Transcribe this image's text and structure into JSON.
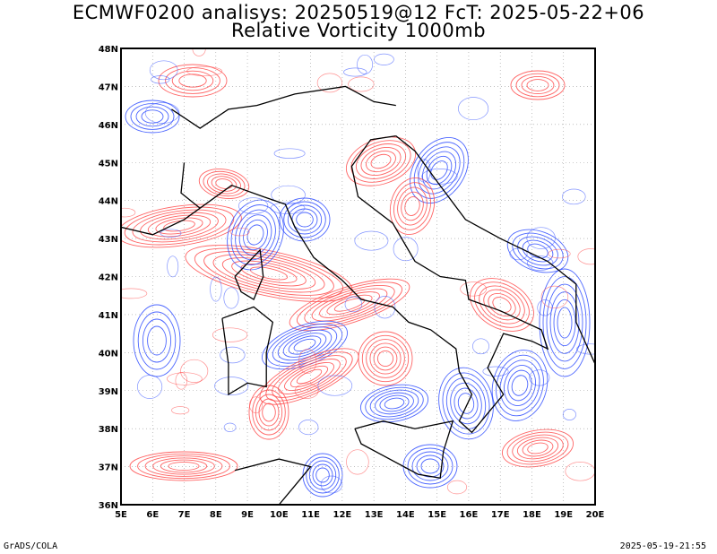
{
  "header": {
    "title_line1": "ECMWF0200 analisys: 20250519@12 FcT: 2025-05-22+06",
    "title_line2": "Relative Vorticity 1000mb"
  },
  "map": {
    "lon_range": [
      5,
      20
    ],
    "lat_range": [
      36,
      48
    ],
    "lon_labels": [
      "5E",
      "6E",
      "7E",
      "8E",
      "9E",
      "10E",
      "11E",
      "12E",
      "13E",
      "14E",
      "15E",
      "16E",
      "17E",
      "18E",
      "19E",
      "20E"
    ],
    "lat_labels": [
      "36N",
      "37N",
      "38N",
      "39N",
      "40N",
      "41N",
      "42N",
      "43N",
      "44N",
      "45N",
      "46N",
      "47N",
      "48N"
    ],
    "gridlines": "dotted",
    "colors": {
      "positive": "#ff4a4a",
      "negative": "#2e4cff",
      "coast": "#000000"
    }
  },
  "footer": {
    "left": "GrADS/COLA",
    "right": "2025-05-19-21:55"
  }
}
